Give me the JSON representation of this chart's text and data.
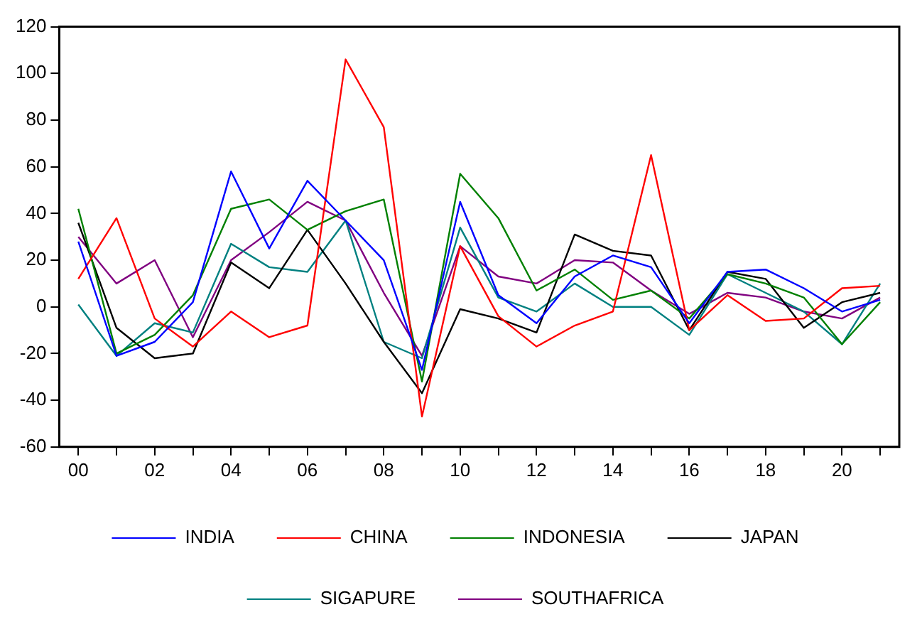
{
  "chart_data": {
    "type": "line",
    "categories": [
      "00",
      null,
      "02",
      null,
      "04",
      null,
      "06",
      null,
      "08",
      null,
      "10",
      null,
      "12",
      null,
      "14",
      null,
      "16",
      null,
      "18",
      null,
      "20",
      null
    ],
    "series": [
      {
        "name": "INDIA",
        "color": "#0000ff",
        "values": [
          28,
          -21,
          -15,
          2,
          58,
          25,
          54,
          37,
          20,
          -27,
          45,
          5,
          -7,
          13,
          22,
          17,
          -7,
          15,
          16,
          8,
          -2,
          3
        ]
      },
      {
        "name": "CHINA",
        "color": "#ff0000",
        "values": [
          12,
          38,
          -5,
          -17,
          -2,
          -13,
          -8,
          106,
          77,
          -47,
          26,
          -4,
          -17,
          -8,
          -2,
          65,
          -10,
          5,
          -6,
          -5,
          8,
          9
        ]
      },
      {
        "name": "INDONESIA",
        "color": "#008000",
        "values": [
          42,
          -20,
          -12,
          5,
          42,
          46,
          33,
          41,
          46,
          -32,
          57,
          38,
          7,
          16,
          3,
          7,
          -5,
          14,
          10,
          4,
          -16,
          2
        ]
      },
      {
        "name": "JAPAN",
        "color": "#000000",
        "values": [
          36,
          -9,
          -22,
          -20,
          19,
          8,
          33,
          10,
          -15,
          -37,
          -1,
          -5,
          -11,
          31,
          24,
          22,
          -10,
          15,
          12,
          -9,
          2,
          6
        ]
      },
      {
        "name": "SIGAPURE",
        "color": "#008080",
        "values": [
          1,
          -21,
          -7,
          -11,
          27,
          17,
          15,
          37,
          -15,
          -22,
          34,
          4,
          -2,
          10,
          0,
          0,
          -12,
          14,
          6,
          -2,
          -16,
          10
        ]
      },
      {
        "name": "SOUTHAFRICA",
        "color": "#800080",
        "values": [
          30,
          10,
          20,
          -13,
          20,
          32,
          45,
          37,
          6,
          -21,
          26,
          13,
          10,
          20,
          19,
          7,
          -3,
          6,
          4,
          -2,
          -5,
          4
        ]
      }
    ],
    "ylim": [
      -60,
      120
    ],
    "yticks": [
      -60,
      -40,
      -20,
      0,
      20,
      40,
      60,
      80,
      100,
      120
    ],
    "grid": false,
    "legend": "bottom",
    "marker": "none",
    "line_style": "solid"
  }
}
